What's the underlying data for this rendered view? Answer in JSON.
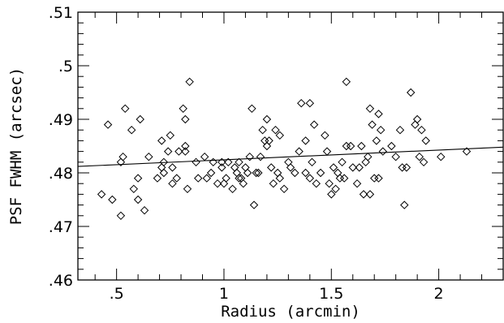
{
  "chart_data": {
    "type": "scatter",
    "xlabel": "Radius (arcmin)",
    "ylabel": "PSF FWHM (arcsec)",
    "xlim": [
      0.32,
      2.3
    ],
    "ylim": [
      0.46,
      0.51
    ],
    "x_ticks": [
      {
        "value": 0.5,
        "label": ".5"
      },
      {
        "value": 1.0,
        "label": "1"
      },
      {
        "value": 1.5,
        "label": "1.5"
      },
      {
        "value": 2.0,
        "label": "2"
      }
    ],
    "y_ticks": [
      {
        "value": 0.46,
        "label": ".46"
      },
      {
        "value": 0.47,
        "label": ".47"
      },
      {
        "value": 0.48,
        "label": ".48"
      },
      {
        "value": 0.49,
        "label": ".49"
      },
      {
        "value": 0.5,
        "label": ".5"
      },
      {
        "value": 0.51,
        "label": ".51"
      }
    ],
    "grid": false,
    "marker": "diamond-open",
    "points": [
      [
        0.43,
        0.476
      ],
      [
        0.46,
        0.489
      ],
      [
        0.48,
        0.475
      ],
      [
        0.52,
        0.472
      ],
      [
        0.52,
        0.482
      ],
      [
        0.53,
        0.483
      ],
      [
        0.54,
        0.492
      ],
      [
        0.57,
        0.488
      ],
      [
        0.58,
        0.477
      ],
      [
        0.6,
        0.479
      ],
      [
        0.6,
        0.475
      ],
      [
        0.61,
        0.49
      ],
      [
        0.63,
        0.473
      ],
      [
        0.65,
        0.483
      ],
      [
        0.69,
        0.479
      ],
      [
        0.71,
        0.486
      ],
      [
        0.71,
        0.481
      ],
      [
        0.72,
        0.48
      ],
      [
        0.72,
        0.482
      ],
      [
        0.74,
        0.484
      ],
      [
        0.75,
        0.487
      ],
      [
        0.76,
        0.478
      ],
      [
        0.76,
        0.481
      ],
      [
        0.78,
        0.479
      ],
      [
        0.79,
        0.484
      ],
      [
        0.81,
        0.492
      ],
      [
        0.82,
        0.49
      ],
      [
        0.82,
        0.484
      ],
      [
        0.82,
        0.485
      ],
      [
        0.83,
        0.477
      ],
      [
        0.84,
        0.497
      ],
      [
        0.87,
        0.482
      ],
      [
        0.88,
        0.479
      ],
      [
        0.91,
        0.483
      ],
      [
        0.92,
        0.479
      ],
      [
        0.94,
        0.48
      ],
      [
        0.95,
        0.482
      ],
      [
        0.97,
        0.478
      ],
      [
        0.99,
        0.481
      ],
      [
        0.99,
        0.482
      ],
      [
        1.0,
        0.478
      ],
      [
        1.01,
        0.479
      ],
      [
        1.02,
        0.482
      ],
      [
        1.04,
        0.477
      ],
      [
        1.05,
        0.481
      ],
      [
        1.06,
        0.48
      ],
      [
        1.07,
        0.479
      ],
      [
        1.07,
        0.482
      ],
      [
        1.08,
        0.479
      ],
      [
        1.09,
        0.478
      ],
      [
        1.1,
        0.481
      ],
      [
        1.11,
        0.48
      ],
      [
        1.12,
        0.483
      ],
      [
        1.13,
        0.492
      ],
      [
        1.14,
        0.474
      ],
      [
        1.15,
        0.48
      ],
      [
        1.16,
        0.48
      ],
      [
        1.17,
        0.483
      ],
      [
        1.18,
        0.488
      ],
      [
        1.19,
        0.486
      ],
      [
        1.2,
        0.49
      ],
      [
        1.2,
        0.485
      ],
      [
        1.21,
        0.486
      ],
      [
        1.22,
        0.481
      ],
      [
        1.23,
        0.478
      ],
      [
        1.24,
        0.488
      ],
      [
        1.25,
        0.48
      ],
      [
        1.26,
        0.487
      ],
      [
        1.26,
        0.479
      ],
      [
        1.28,
        0.477
      ],
      [
        1.3,
        0.482
      ],
      [
        1.31,
        0.481
      ],
      [
        1.33,
        0.48
      ],
      [
        1.35,
        0.484
      ],
      [
        1.36,
        0.493
      ],
      [
        1.38,
        0.486
      ],
      [
        1.38,
        0.48
      ],
      [
        1.4,
        0.493
      ],
      [
        1.4,
        0.479
      ],
      [
        1.41,
        0.482
      ],
      [
        1.42,
        0.489
      ],
      [
        1.43,
        0.478
      ],
      [
        1.45,
        0.48
      ],
      [
        1.47,
        0.487
      ],
      [
        1.48,
        0.484
      ],
      [
        1.49,
        0.478
      ],
      [
        1.5,
        0.476
      ],
      [
        1.51,
        0.481
      ],
      [
        1.52,
        0.477
      ],
      [
        1.53,
        0.48
      ],
      [
        1.54,
        0.479
      ],
      [
        1.55,
        0.482
      ],
      [
        1.56,
        0.479
      ],
      [
        1.57,
        0.485
      ],
      [
        1.57,
        0.497
      ],
      [
        1.59,
        0.485
      ],
      [
        1.6,
        0.481
      ],
      [
        1.62,
        0.478
      ],
      [
        1.63,
        0.481
      ],
      [
        1.64,
        0.485
      ],
      [
        1.65,
        0.476
      ],
      [
        1.66,
        0.482
      ],
      [
        1.67,
        0.483
      ],
      [
        1.68,
        0.492
      ],
      [
        1.68,
        0.476
      ],
      [
        1.69,
        0.489
      ],
      [
        1.7,
        0.479
      ],
      [
        1.71,
        0.486
      ],
      [
        1.72,
        0.491
      ],
      [
        1.72,
        0.479
      ],
      [
        1.73,
        0.488
      ],
      [
        1.74,
        0.484
      ],
      [
        1.78,
        0.485
      ],
      [
        1.8,
        0.483
      ],
      [
        1.82,
        0.488
      ],
      [
        1.83,
        0.481
      ],
      [
        1.84,
        0.474
      ],
      [
        1.85,
        0.481
      ],
      [
        1.87,
        0.495
      ],
      [
        1.89,
        0.489
      ],
      [
        1.9,
        0.49
      ],
      [
        1.91,
        0.483
      ],
      [
        1.92,
        0.488
      ],
      [
        1.93,
        0.482
      ],
      [
        1.94,
        0.486
      ],
      [
        2.01,
        0.483
      ],
      [
        2.13,
        0.484
      ]
    ],
    "fit_line": {
      "x": [
        0.32,
        2.3
      ],
      "y": [
        0.4812,
        0.4848
      ]
    }
  }
}
